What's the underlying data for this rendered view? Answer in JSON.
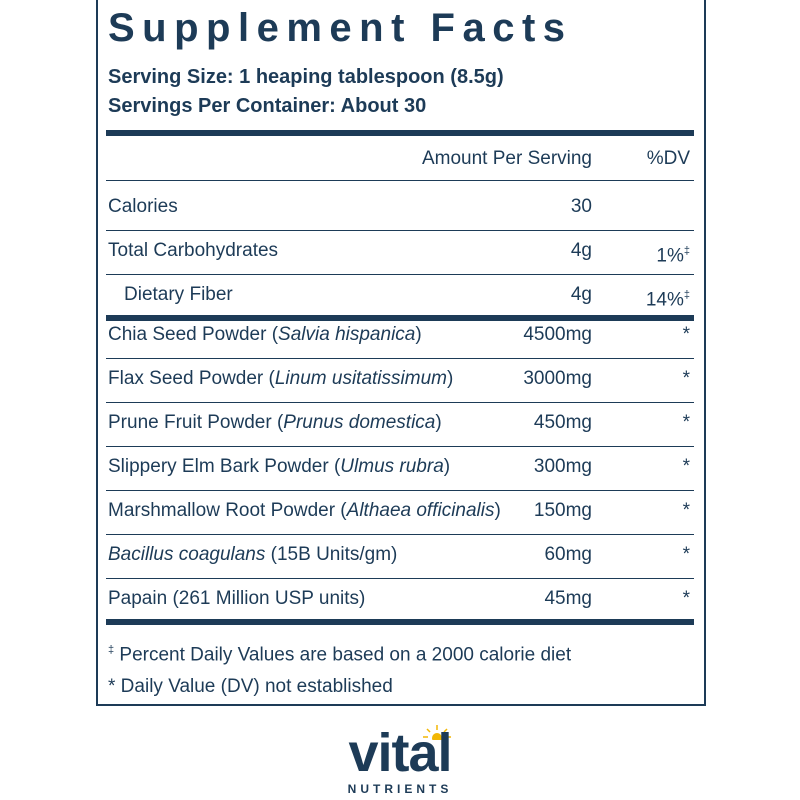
{
  "header": {
    "title": "Supplement Facts",
    "serving_size": "Serving Size: 1 heaping tablespoon (8.5g)",
    "servings_per_container": "Servings Per Container: About 30"
  },
  "table": {
    "columns": [
      "Amount Per Serving",
      "%DV"
    ],
    "sections": [
      {
        "rows": [
          {
            "segments": [
              {
                "text": "Calories",
                "italic": false
              }
            ],
            "amount": "30",
            "dv": "",
            "dv_mark": "",
            "indent": false
          },
          {
            "segments": [
              {
                "text": "Total Carbohydrates",
                "italic": false
              }
            ],
            "amount": "4g",
            "dv": "1%",
            "dv_mark": "‡",
            "indent": false
          },
          {
            "segments": [
              {
                "text": "Dietary Fiber",
                "italic": false
              }
            ],
            "amount": "4g",
            "dv": "14%",
            "dv_mark": "‡",
            "indent": true
          }
        ]
      },
      {
        "rows": [
          {
            "segments": [
              {
                "text": "Chia Seed Powder (",
                "italic": false
              },
              {
                "text": "Salvia hispanica",
                "italic": true
              },
              {
                "text": ")",
                "italic": false
              }
            ],
            "amount": "4500mg",
            "dv": "*",
            "dv_mark": "",
            "indent": false
          },
          {
            "segments": [
              {
                "text": "Flax Seed Powder (",
                "italic": false
              },
              {
                "text": "Linum usitatissimum",
                "italic": true
              },
              {
                "text": ")",
                "italic": false
              }
            ],
            "amount": "3000mg",
            "dv": "*",
            "dv_mark": "",
            "indent": false
          },
          {
            "segments": [
              {
                "text": "Prune Fruit Powder (",
                "italic": false
              },
              {
                "text": "Prunus domestica",
                "italic": true
              },
              {
                "text": ")",
                "italic": false
              }
            ],
            "amount": "450mg",
            "dv": "*",
            "dv_mark": "",
            "indent": false
          },
          {
            "segments": [
              {
                "text": "Slippery Elm Bark Powder (",
                "italic": false
              },
              {
                "text": "Ulmus rubra",
                "italic": true
              },
              {
                "text": ")",
                "italic": false
              }
            ],
            "amount": "300mg",
            "dv": "*",
            "dv_mark": "",
            "indent": false
          },
          {
            "segments": [
              {
                "text": "Marshmallow Root Powder (",
                "italic": false
              },
              {
                "text": "Althaea officinalis",
                "italic": true
              },
              {
                "text": ")",
                "italic": false
              }
            ],
            "amount": "150mg",
            "dv": "*",
            "dv_mark": "",
            "indent": false
          },
          {
            "segments": [
              {
                "text": "Bacillus coagulans",
                "italic": true
              },
              {
                "text": " (15B Units/gm)",
                "italic": false
              }
            ],
            "amount": "60mg",
            "dv": "*",
            "dv_mark": "",
            "indent": false
          },
          {
            "segments": [
              {
                "text": "Papain (261 Million USP units)",
                "italic": false
              }
            ],
            "amount": "45mg",
            "dv": "*",
            "dv_mark": "",
            "indent": false
          }
        ]
      }
    ]
  },
  "footnotes": [
    {
      "symbol": "‡",
      "text": " Percent Daily Values are based on a 2000 calorie diet"
    },
    {
      "symbol": "*",
      "text": " Daily Value (DV) not established"
    }
  ],
  "logo": {
    "name": "vital",
    "tagline": "NUTRIENTS"
  }
}
